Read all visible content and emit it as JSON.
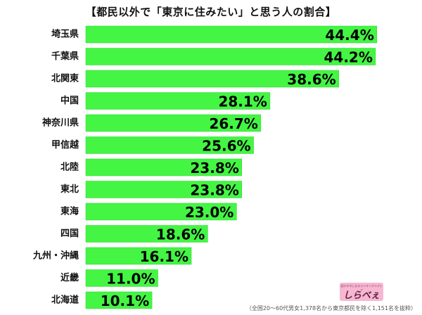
{
  "title": "【都民以外で「東京に住みたい」と思う人の割合】",
  "footnote": "（全国20〜60代男女1,378名から東京都民を除く1,151名を抜粋）",
  "logo": {
    "small_text": "話のネタになるランキングメディア",
    "text": "しらべぇ"
  },
  "colors": {
    "bar": "#44f544",
    "bar_edge": "#2ed52e",
    "logo_bg": "#f7b7d2"
  },
  "chart_data": {
    "type": "bar",
    "orientation": "horizontal",
    "title": "【都民以外で「東京に住みたい」と思う人の割合】",
    "xlabel": "",
    "ylabel": "",
    "xlim": [
      0,
      45.5
    ],
    "grid": false,
    "categories": [
      "埼玉県",
      "千葉県",
      "北関東",
      "中国",
      "神奈川県",
      "甲信越",
      "北陸",
      "東北",
      "東海",
      "四国",
      "九州・沖縄",
      "近畿",
      "北海道"
    ],
    "values": [
      44.4,
      44.2,
      38.6,
      28.1,
      26.7,
      25.6,
      23.8,
      23.8,
      23.0,
      18.6,
      16.1,
      11.0,
      10.1
    ],
    "value_labels": [
      "44.4%",
      "44.2%",
      "38.6%",
      "28.1%",
      "26.7%",
      "25.6%",
      "23.8%",
      "23.8%",
      "23.0%",
      "18.6%",
      "16.1%",
      "11.0%",
      "10.1%"
    ]
  }
}
